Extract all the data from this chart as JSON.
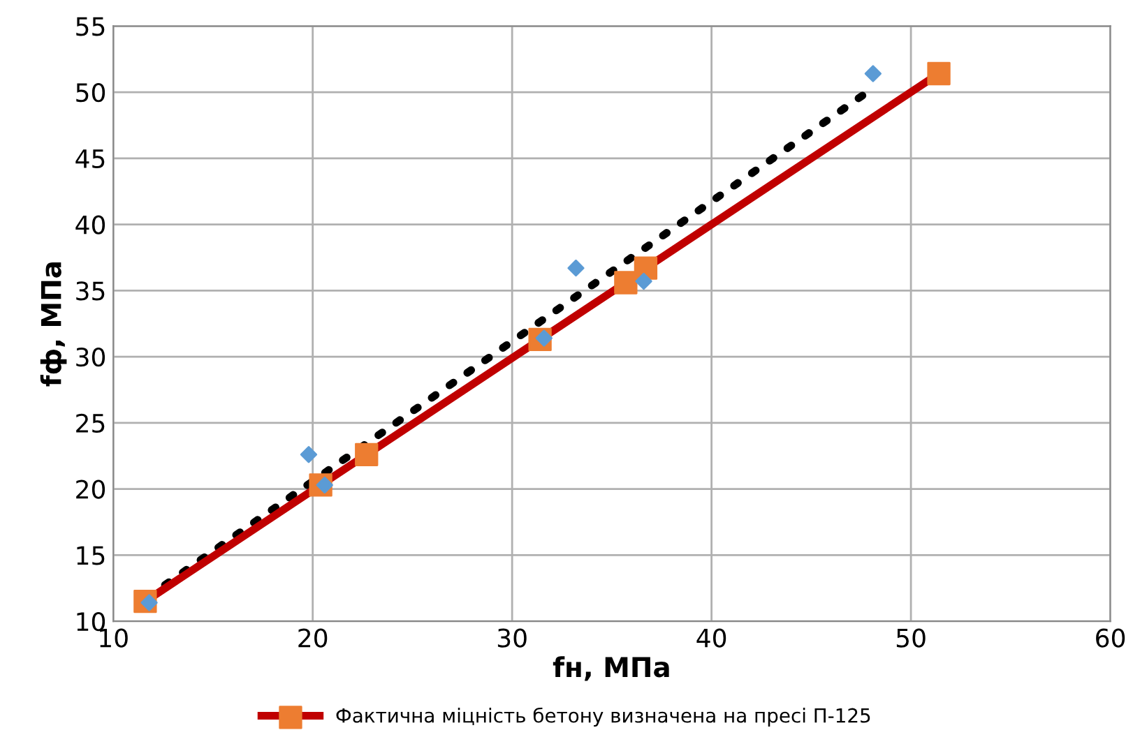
{
  "chart_data": {
    "type": "line",
    "xlabel": "fн, МПа",
    "ylabel": "fф, МПа",
    "xlim": [
      10,
      60
    ],
    "xticks": [
      10,
      20,
      30,
      40,
      50,
      60
    ],
    "ylim": [
      10,
      55
    ],
    "yticks": [
      10,
      15,
      20,
      25,
      30,
      35,
      40,
      45,
      50,
      55
    ],
    "grid": true,
    "legend": "bottom",
    "series": [
      {
        "x": [
          11.7,
          48.0
        ],
        "values": [
          11.8,
          50.2
        ],
        "color": "#000000",
        "line_style": "dotted",
        "marker": "none"
      },
      {
        "type": "scatter",
        "x": [
          11.8,
          19.8,
          20.6,
          31.6,
          33.2,
          36.6,
          48.1
        ],
        "values": [
          11.4,
          22.6,
          20.3,
          31.4,
          36.7,
          35.7,
          51.4
        ],
        "color": "#5b9bd5",
        "marker": "diamond"
      },
      {
        "name": "Фактична міцність бетону визначена на пресі П-125",
        "x": [
          11.6,
          20.4,
          22.7,
          31.4,
          35.7,
          36.7,
          51.4
        ],
        "values": [
          11.5,
          20.3,
          22.6,
          31.3,
          35.6,
          36.7,
          51.4
        ],
        "color": "#c00000",
        "marker": "square",
        "colors": [
          "#ed7d31",
          "#ed7d31",
          "#ed7d31",
          "#ed7d31",
          "#ed7d31",
          "#ed7d31",
          "#ed7d31"
        ],
        "line_style": "solid"
      }
    ]
  }
}
